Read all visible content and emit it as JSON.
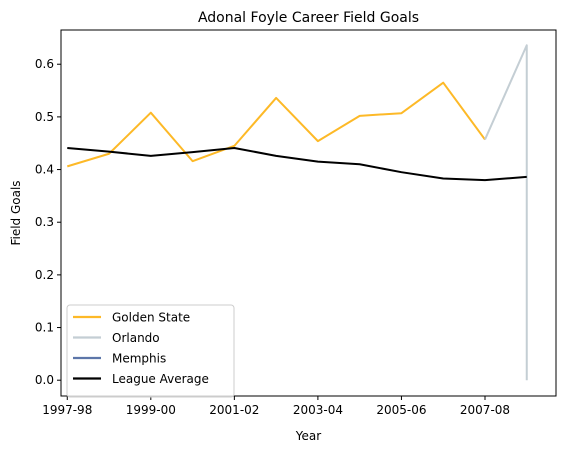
{
  "chart_data": {
    "type": "line",
    "title": "Adonal Foyle Career Field Goals",
    "xlabel": "Year",
    "ylabel": "Field Goals",
    "x_tick_labels": [
      "1997-98",
      "1999-00",
      "2001-02",
      "2003-04",
      "2005-06",
      "2007-08"
    ],
    "x_seasons": [
      "1997-98",
      "1998-99",
      "1999-00",
      "2000-01",
      "2001-02",
      "2002-03",
      "2003-04",
      "2004-05",
      "2005-06",
      "2006-07",
      "2007-08",
      "2008-09",
      "2009-10"
    ],
    "xlim": [
      "1997-98",
      "2009-10"
    ],
    "ylim": [
      -0.03,
      0.665
    ],
    "y_ticks": [
      0.0,
      0.1,
      0.2,
      0.3,
      0.4,
      0.5,
      0.6
    ],
    "y_tick_labels": [
      "0.0",
      "0.1",
      "0.2",
      "0.3",
      "0.4",
      "0.5",
      "0.6"
    ],
    "grid": false,
    "legend_position": "lower-left",
    "series": [
      {
        "name": "Golden State",
        "color": "#FDB927",
        "points": [
          [
            "1997-98",
            0.406
          ],
          [
            "1998-99",
            0.43
          ],
          [
            "1999-00",
            0.508
          ],
          [
            "2000-01",
            0.416
          ],
          [
            "2001-02",
            0.445
          ],
          [
            "2002-03",
            0.536
          ],
          [
            "2003-04",
            0.454
          ],
          [
            "2004-05",
            0.502
          ],
          [
            "2005-06",
            0.507
          ],
          [
            "2006-07",
            0.565
          ],
          [
            "2007-08",
            0.457
          ]
        ]
      },
      {
        "name": "Orlando",
        "color": "#C4CED4",
        "points": [
          [
            "2007-08",
            0.457
          ],
          [
            "2008-09",
            0.636
          ],
          [
            "2008-09",
            0.0
          ]
        ]
      },
      {
        "name": "Memphis",
        "color": "#5D76A9",
        "points": [
          [
            "2008-09",
            0.0
          ]
        ]
      },
      {
        "name": "League Average",
        "color": "#000000",
        "points": [
          [
            "1997-98",
            0.441
          ],
          [
            "1998-99",
            0.434
          ],
          [
            "1999-00",
            0.426
          ],
          [
            "2000-01",
            0.433
          ],
          [
            "2001-02",
            0.441
          ],
          [
            "2002-03",
            0.426
          ],
          [
            "2003-04",
            0.415
          ],
          [
            "2004-05",
            0.41
          ],
          [
            "2005-06",
            0.395
          ],
          [
            "2006-07",
            0.383
          ],
          [
            "2007-08",
            0.38
          ],
          [
            "2008-09",
            0.386
          ]
        ]
      }
    ]
  }
}
